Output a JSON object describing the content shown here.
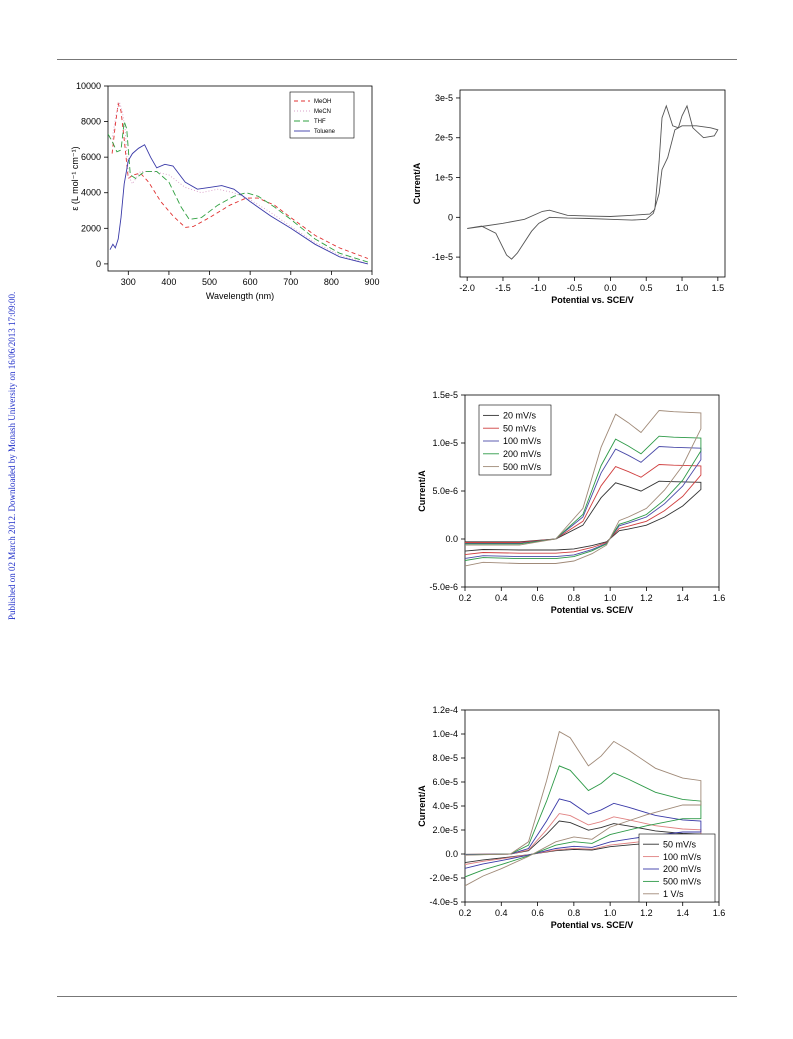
{
  "watermark": {
    "text": "Published on 02 March 2012. Downloaded by Monash University on 16/06/2013 17:09:00.",
    "color": "#1f2ec9"
  },
  "chart_data": [
    {
      "id": "uvvis",
      "type": "line",
      "title": "",
      "xlabel": "Wavelength (nm)",
      "ylabel": "ε (L mol⁻¹ cm⁻¹)",
      "xlim": [
        250,
        900
      ],
      "ylim": [
        -400,
        10000
      ],
      "xticks": [
        300,
        400,
        500,
        600,
        700,
        800,
        900
      ],
      "yticks": [
        0,
        2000,
        4000,
        6000,
        8000,
        10000
      ],
      "ytick_labels": [
        "0",
        "2000",
        "4000",
        "6000",
        "8000",
        "10000"
      ],
      "legend_position": "top-right",
      "grid": false,
      "series": [
        {
          "name": "MeOH",
          "color": "#e03030",
          "dash": "4,3",
          "points": [
            [
              260,
              6200
            ],
            [
              268,
              7800
            ],
            [
              275,
              9000
            ],
            [
              282,
              8600
            ],
            [
              290,
              7000
            ],
            [
              300,
              4800
            ],
            [
              312,
              5000
            ],
            [
              330,
              5100
            ],
            [
              350,
              4600
            ],
            [
              380,
              3500
            ],
            [
              410,
              2700
            ],
            [
              440,
              2050
            ],
            [
              460,
              2100
            ],
            [
              500,
              2600
            ],
            [
              550,
              3300
            ],
            [
              590,
              3700
            ],
            [
              620,
              3700
            ],
            [
              660,
              3300
            ],
            [
              700,
              2600
            ],
            [
              760,
              1600
            ],
            [
              820,
              900
            ],
            [
              890,
              300
            ]
          ]
        },
        {
          "name": "MeCN",
          "color": "#d9a0c8",
          "dash": "1,2",
          "points": [
            [
              260,
              7000
            ],
            [
              270,
              8400
            ],
            [
              278,
              9100
            ],
            [
              285,
              8600
            ],
            [
              292,
              7600
            ],
            [
              300,
              5000
            ],
            [
              310,
              4500
            ],
            [
              330,
              5200
            ],
            [
              360,
              5200
            ],
            [
              400,
              5000
            ],
            [
              440,
              4300
            ],
            [
              480,
              4000
            ],
            [
              520,
              4200
            ],
            [
              560,
              4000
            ],
            [
              600,
              3600
            ],
            [
              650,
              2900
            ],
            [
              700,
              2100
            ],
            [
              760,
              1200
            ],
            [
              820,
              500
            ],
            [
              890,
              0
            ]
          ]
        },
        {
          "name": "THF",
          "color": "#2fa040",
          "dash": "6,3",
          "points": [
            [
              250,
              7300
            ],
            [
              262,
              6800
            ],
            [
              272,
              6300
            ],
            [
              282,
              6400
            ],
            [
              290,
              8000
            ],
            [
              296,
              7600
            ],
            [
              305,
              5000
            ],
            [
              318,
              4800
            ],
            [
              340,
              5200
            ],
            [
              370,
              5200
            ],
            [
              400,
              4600
            ],
            [
              430,
              3200
            ],
            [
              450,
              2500
            ],
            [
              480,
              2600
            ],
            [
              520,
              3300
            ],
            [
              560,
              3800
            ],
            [
              590,
              4000
            ],
            [
              620,
              3800
            ],
            [
              660,
              3200
            ],
            [
              700,
              2500
            ],
            [
              760,
              1400
            ],
            [
              820,
              600
            ],
            [
              890,
              100
            ]
          ]
        },
        {
          "name": "Toluene",
          "color": "#3a3aa8",
          "dash": "",
          "points": [
            [
              255,
              800
            ],
            [
              262,
              1100
            ],
            [
              268,
              900
            ],
            [
              275,
              1400
            ],
            [
              282,
              2600
            ],
            [
              290,
              4500
            ],
            [
              300,
              5800
            ],
            [
              310,
              6200
            ],
            [
              325,
              6500
            ],
            [
              340,
              6700
            ],
            [
              355,
              6000
            ],
            [
              370,
              5400
            ],
            [
              390,
              5600
            ],
            [
              410,
              5500
            ],
            [
              440,
              4600
            ],
            [
              470,
              4200
            ],
            [
              500,
              4300
            ],
            [
              530,
              4400
            ],
            [
              560,
              4200
            ],
            [
              600,
              3500
            ],
            [
              650,
              2700
            ],
            [
              700,
              2000
            ],
            [
              760,
              1100
            ],
            [
              820,
              400
            ],
            [
              890,
              0
            ]
          ]
        }
      ]
    },
    {
      "id": "cv1",
      "type": "line",
      "title": "",
      "xlabel": "Potential vs. SCE/V",
      "ylabel": "Current/A",
      "xlim": [
        -2.1,
        1.6
      ],
      "ylim": [
        -1.5e-05,
        3.2e-05
      ],
      "xticks": [
        -2.0,
        -1.5,
        -1.0,
        -0.5,
        0.0,
        0.5,
        1.0,
        1.5
      ],
      "xtick_labels": [
        "-2.0",
        "-1.5",
        "-1.0",
        "-0.5",
        "0.0",
        "0.5",
        "1.0",
        "1.5"
      ],
      "yticks": [
        -1e-05,
        0,
        1e-05,
        2e-05,
        3e-05
      ],
      "ytick_labels": [
        "-1e-5",
        "0",
        "1e-5",
        "2e-5",
        "3e-5"
      ],
      "grid": false,
      "series": [
        {
          "name": "",
          "color": "#555555",
          "dash": "",
          "points": [
            [
              -2.0,
              -2.8e-06
            ],
            [
              -1.8,
              -2.2e-06
            ],
            [
              -1.6,
              -4e-06
            ],
            [
              -1.45,
              -9.5e-06
            ],
            [
              -1.38,
              -1.05e-05
            ],
            [
              -1.3,
              -9e-06
            ],
            [
              -1.1,
              -3.5e-06
            ],
            [
              -1.0,
              -1.5e-06
            ],
            [
              -0.85,
              0
            ],
            [
              -0.6,
              -2e-07
            ],
            [
              -0.3,
              -3e-07
            ],
            [
              0.0,
              -5e-07
            ],
            [
              0.3,
              -7e-07
            ],
            [
              0.5,
              -5e-07
            ],
            [
              0.6,
              1e-06
            ],
            [
              0.68,
              6e-06
            ],
            [
              0.72,
              1.2e-05
            ],
            [
              0.8,
              1.5e-05
            ],
            [
              0.9,
              2.2e-05
            ],
            [
              1.0,
              2.3e-05
            ],
            [
              1.2,
              2.3e-05
            ],
            [
              1.4,
              2.25e-05
            ],
            [
              1.5,
              2.2e-05
            ],
            [
              1.45,
              2.05e-05
            ],
            [
              1.3,
              2e-05
            ],
            [
              1.15,
              2.25e-05
            ],
            [
              1.07,
              2.8e-05
            ],
            [
              1.0,
              2.55e-05
            ],
            [
              0.95,
              2.25e-05
            ],
            [
              0.87,
              2.3e-05
            ],
            [
              0.78,
              2.8e-05
            ],
            [
              0.72,
              2.5e-05
            ],
            [
              0.68,
              1.4e-05
            ],
            [
              0.62,
              2e-06
            ],
            [
              0.55,
              8e-07
            ],
            [
              0.3,
              5e-07
            ],
            [
              0.0,
              2e-07
            ],
            [
              -0.3,
              3e-07
            ],
            [
              -0.6,
              5e-07
            ],
            [
              -0.85,
              1.8e-06
            ],
            [
              -0.95,
              1.5e-06
            ],
            [
              -1.2,
              -5e-07
            ],
            [
              -1.5,
              -1.5e-06
            ],
            [
              -1.8,
              -2.3e-06
            ],
            [
              -2.0,
              -2.8e-06
            ]
          ]
        }
      ]
    },
    {
      "id": "cv2",
      "type": "line",
      "title": "",
      "xlabel": "Potential vs. SCE/V",
      "ylabel": "Current/A",
      "xlim": [
        0.2,
        1.6
      ],
      "ylim": [
        -5e-06,
        1.5e-05
      ],
      "xticks": [
        0.2,
        0.4,
        0.6,
        0.8,
        1.0,
        1.2,
        1.4,
        1.6
      ],
      "xtick_labels": [
        "0.2",
        "0.4",
        "0.6",
        "0.8",
        "1.0",
        "1.2",
        "1.4",
        "1.6"
      ],
      "yticks": [
        -5e-06,
        0,
        5e-06,
        1e-05,
        1.5e-05
      ],
      "ytick_labels": [
        "-5.0e-6",
        "0.0",
        "5.0e-6",
        "1.0e-5",
        "1.5e-5"
      ],
      "legend_position": "top-left",
      "grid": false,
      "series": [
        {
          "name": "20 mV/s",
          "color": "#333333",
          "scale": 0.45,
          "dash": ""
        },
        {
          "name": "50 mV/s",
          "color": "#d04040",
          "scale": 0.58,
          "dash": ""
        },
        {
          "name": "100 mV/s",
          "color": "#4a4aa8",
          "scale": 0.72,
          "dash": ""
        },
        {
          "name": "200 mV/s",
          "color": "#2e9a48",
          "scale": 0.8,
          "dash": ""
        },
        {
          "name": "500 mV/s",
          "color": "#a08a78",
          "scale": 1.0,
          "dash": ""
        }
      ],
      "base_shape": [
        [
          0.2,
          -0.05
        ],
        [
          0.5,
          -0.05
        ],
        [
          0.7,
          0.0
        ],
        [
          0.85,
          0.25
        ],
        [
          0.95,
          0.75
        ],
        [
          1.03,
          1.02
        ],
        [
          1.1,
          0.95
        ],
        [
          1.17,
          0.87
        ],
        [
          1.27,
          1.05
        ],
        [
          1.35,
          1.04
        ],
        [
          1.5,
          1.03
        ],
        [
          1.5,
          0.9
        ],
        [
          1.4,
          0.6
        ],
        [
          1.3,
          0.4
        ],
        [
          1.2,
          0.25
        ],
        [
          1.1,
          0.18
        ],
        [
          1.05,
          0.15
        ],
        [
          0.98,
          -0.05
        ],
        [
          0.9,
          -0.12
        ],
        [
          0.8,
          -0.18
        ],
        [
          0.7,
          -0.2
        ],
        [
          0.5,
          -0.2
        ],
        [
          0.3,
          -0.19
        ],
        [
          0.2,
          -0.22
        ]
      ]
    },
    {
      "id": "cv3",
      "type": "line",
      "title": "",
      "xlabel": "Potential vs. SCE/V",
      "ylabel": "Current/A",
      "xlim": [
        0.2,
        1.6
      ],
      "ylim": [
        -4e-05,
        0.00012
      ],
      "xticks": [
        0.2,
        0.4,
        0.6,
        0.8,
        1.0,
        1.2,
        1.4,
        1.6
      ],
      "xtick_labels": [
        "0.2",
        "0.4",
        "0.6",
        "0.8",
        "1.0",
        "1.2",
        "1.4",
        "1.6"
      ],
      "yticks": [
        -4e-05,
        -2e-05,
        0,
        2e-05,
        4e-05,
        6e-05,
        8e-05,
        0.0001,
        0.00012
      ],
      "ytick_labels": [
        "-4.0e-5",
        "-2.0e-5",
        "0.0",
        "2.0e-5",
        "4.0e-5",
        "6.0e-5",
        "8.0e-5",
        "1.0e-4",
        "1.2e-4"
      ],
      "legend_position": "bottom-right",
      "grid": false,
      "series": [
        {
          "name": "50 mV/s",
          "color": "#333333",
          "scale": 0.27,
          "dash": ""
        },
        {
          "name": "100 mV/s",
          "color": "#e08080",
          "scale": 0.33,
          "dash": ""
        },
        {
          "name": "200 mV/s",
          "color": "#3a3aa8",
          "scale": 0.45,
          "dash": ""
        },
        {
          "name": "500 mV/s",
          "color": "#2e9a48",
          "scale": 0.72,
          "dash": ""
        },
        {
          "name": "1 V/s",
          "color": "#a08a78",
          "scale": 1.0,
          "dash": ""
        }
      ],
      "base_shape": [
        [
          0.2,
          -0.01
        ],
        [
          0.45,
          0.0
        ],
        [
          0.55,
          0.1
        ],
        [
          0.65,
          0.6
        ],
        [
          0.72,
          1.0
        ],
        [
          0.78,
          0.95
        ],
        [
          0.88,
          0.72
        ],
        [
          0.95,
          0.8
        ],
        [
          1.02,
          0.92
        ],
        [
          1.1,
          0.85
        ],
        [
          1.25,
          0.7
        ],
        [
          1.4,
          0.62
        ],
        [
          1.5,
          0.6
        ],
        [
          1.5,
          0.4
        ],
        [
          1.4,
          0.4
        ],
        [
          1.2,
          0.32
        ],
        [
          1.0,
          0.22
        ],
        [
          0.9,
          0.12
        ],
        [
          0.8,
          0.14
        ],
        [
          0.7,
          0.1
        ],
        [
          0.55,
          -0.02
        ],
        [
          0.4,
          -0.12
        ],
        [
          0.3,
          -0.18
        ],
        [
          0.2,
          -0.26
        ]
      ]
    }
  ]
}
